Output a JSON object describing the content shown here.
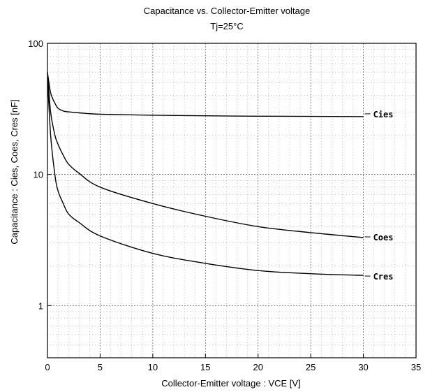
{
  "chart_data": {
    "type": "line",
    "title": "Capacitance  vs.  Collector-Emitter  voltage",
    "subtitle": "Tj=25°C",
    "xlabel": "Collector-Emitter  voltage  :  VCE [V]",
    "ylabel": "Capacitance  :  Cies,  Coes,  Cres  [nF]",
    "xlim": [
      0,
      35
    ],
    "ylim": [
      0.4,
      100
    ],
    "yscale": "log",
    "grid": true,
    "x_ticks": [
      "0",
      "5",
      "10",
      "15",
      "20",
      "25",
      "30",
      "35"
    ],
    "y_ticks": [
      "1",
      "10",
      "100"
    ],
    "series": [
      {
        "name": "Cies",
        "x": [
          0,
          0.3,
          0.7,
          1,
          1.5,
          2,
          3,
          5,
          10,
          15,
          20,
          25,
          30
        ],
        "values": [
          60,
          42,
          35,
          32,
          30.5,
          30,
          29.5,
          28.8,
          28.3,
          28.0,
          27.8,
          27.7,
          27.6
        ]
      },
      {
        "name": "Coes",
        "x": [
          0,
          0.3,
          0.7,
          1,
          1.5,
          2,
          3,
          5,
          10,
          15,
          20,
          25,
          30
        ],
        "values": [
          60,
          30,
          20,
          17,
          14,
          12,
          10.2,
          8.0,
          6.0,
          4.8,
          4.0,
          3.6,
          3.3
        ]
      },
      {
        "name": "Cres",
        "x": [
          0,
          0.3,
          0.7,
          1,
          1.5,
          2,
          3,
          5,
          10,
          15,
          20,
          25,
          30
        ],
        "values": [
          55,
          20,
          10,
          7.5,
          6.0,
          5.0,
          4.3,
          3.4,
          2.5,
          2.1,
          1.85,
          1.75,
          1.7
        ]
      }
    ]
  }
}
